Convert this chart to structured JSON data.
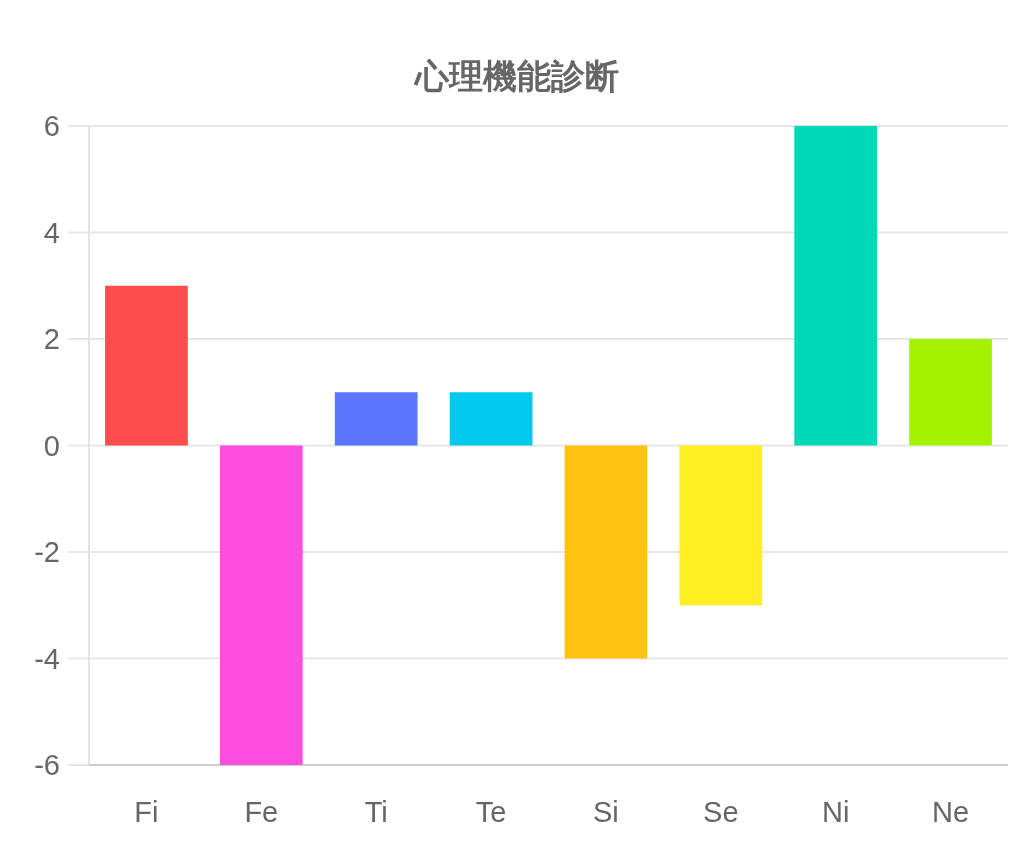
{
  "chart_data": {
    "type": "bar",
    "title": "心理機能診断",
    "categories": [
      "Fi",
      "Fe",
      "Ti",
      "Te",
      "Si",
      "Se",
      "Ni",
      "Ne"
    ],
    "values": [
      3,
      -6,
      1,
      1,
      -4,
      -3,
      6,
      2
    ],
    "colors": [
      "#ff4d4d",
      "#ff4de0",
      "#5b75ff",
      "#00c9f0",
      "#ffc20f",
      "#ffee22",
      "#00d9b8",
      "#a3f200"
    ],
    "ylim": [
      -6,
      6
    ],
    "yticks": [
      -6,
      -4,
      -2,
      0,
      2,
      4,
      6
    ],
    "grid": "y"
  }
}
